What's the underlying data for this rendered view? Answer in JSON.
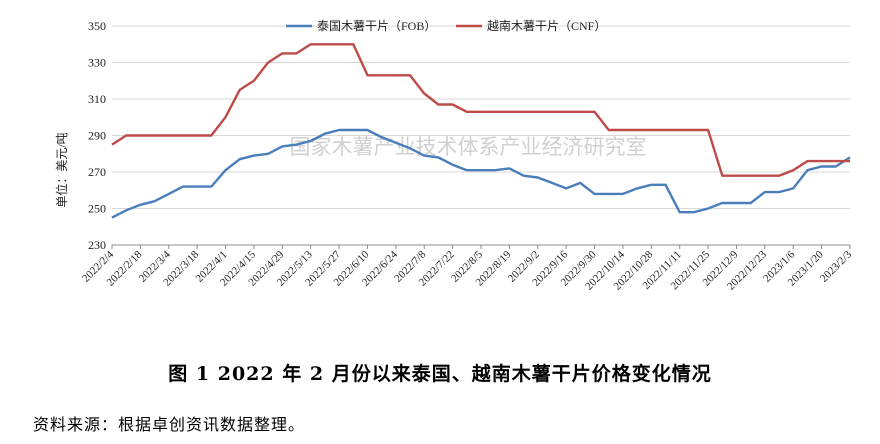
{
  "chart_data": {
    "type": "line",
    "ylabel": "单位：美元/吨",
    "ylim": [
      230,
      350
    ],
    "yticks": [
      230,
      250,
      270,
      290,
      310,
      330,
      350
    ],
    "grid": "horizontal",
    "legend": "top",
    "watermark": "国家木薯产业技术体系产业经济研究室",
    "xticks": [
      "2022/2/4",
      "2022/2/18",
      "2022/3/4",
      "2022/3/18",
      "2022/4/1",
      "2022/4/15",
      "2022/4/29",
      "2022/5/13",
      "2022/5/27",
      "2022/6/10",
      "2022/6/24",
      "2022/7/8",
      "2022/7/22",
      "2022/8/5",
      "2022/8/19",
      "2022/9/2",
      "2022/9/16",
      "2022/9/30",
      "2022/10/14",
      "2022/10/28",
      "2022/11/11",
      "2022/11/25",
      "2022/12/9",
      "2022/12/23",
      "2023/1/6",
      "2023/1/20",
      "2023/2/3"
    ],
    "x": [
      "2022/2/4",
      "2022/2/11",
      "2022/2/18",
      "2022/2/25",
      "2022/3/4",
      "2022/3/11",
      "2022/3/18",
      "2022/3/25",
      "2022/4/1",
      "2022/4/8",
      "2022/4/15",
      "2022/4/22",
      "2022/4/29",
      "2022/5/6",
      "2022/5/13",
      "2022/5/20",
      "2022/5/27",
      "2022/6/3",
      "2022/6/10",
      "2022/6/17",
      "2022/6/24",
      "2022/7/1",
      "2022/7/8",
      "2022/7/15",
      "2022/7/22",
      "2022/7/29",
      "2022/8/5",
      "2022/8/12",
      "2022/8/19",
      "2022/8/26",
      "2022/9/2",
      "2022/9/9",
      "2022/9/16",
      "2022/9/23",
      "2022/9/30",
      "2022/10/7",
      "2022/10/14",
      "2022/10/21",
      "2022/10/28",
      "2022/11/4",
      "2022/11/11",
      "2022/11/18",
      "2022/11/25",
      "2022/12/2",
      "2022/12/9",
      "2022/12/16",
      "2022/12/23",
      "2022/12/30",
      "2023/1/6",
      "2023/1/13",
      "2023/1/20",
      "2023/1/27",
      "2023/2/3"
    ],
    "series": [
      {
        "name": "泰国木薯干片（FOB）",
        "color": "#4a7ebb",
        "values": [
          245,
          249,
          252,
          254,
          258,
          262,
          262,
          262,
          271,
          277,
          279,
          280,
          284,
          285,
          287,
          291,
          293,
          293,
          293,
          289,
          286,
          283,
          279,
          278,
          274,
          271,
          271,
          271,
          272,
          268,
          267,
          264,
          261,
          264,
          258,
          258,
          258,
          261,
          263,
          263,
          248,
          248,
          250,
          253,
          253,
          253,
          259,
          259,
          261,
          271,
          273,
          273,
          278
        ]
      },
      {
        "name": "越南木薯干片（CNF）",
        "color": "#be4b48",
        "values": [
          285,
          290,
          290,
          290,
          290,
          290,
          290,
          290,
          300,
          315,
          320,
          330,
          335,
          335,
          340,
          340,
          340,
          340,
          323,
          323,
          323,
          323,
          313,
          307,
          307,
          303,
          303,
          303,
          303,
          303,
          303,
          303,
          303,
          303,
          303,
          293,
          293,
          293,
          293,
          293,
          293,
          293,
          293,
          268,
          268,
          268,
          268,
          268,
          271,
          276,
          276,
          276,
          276
        ]
      }
    ]
  },
  "caption": "图 1    2022 年 2 月份以来泰国、越南木薯干片价格变化情况",
  "source": "资料来源：根据卓创资讯数据整理。"
}
